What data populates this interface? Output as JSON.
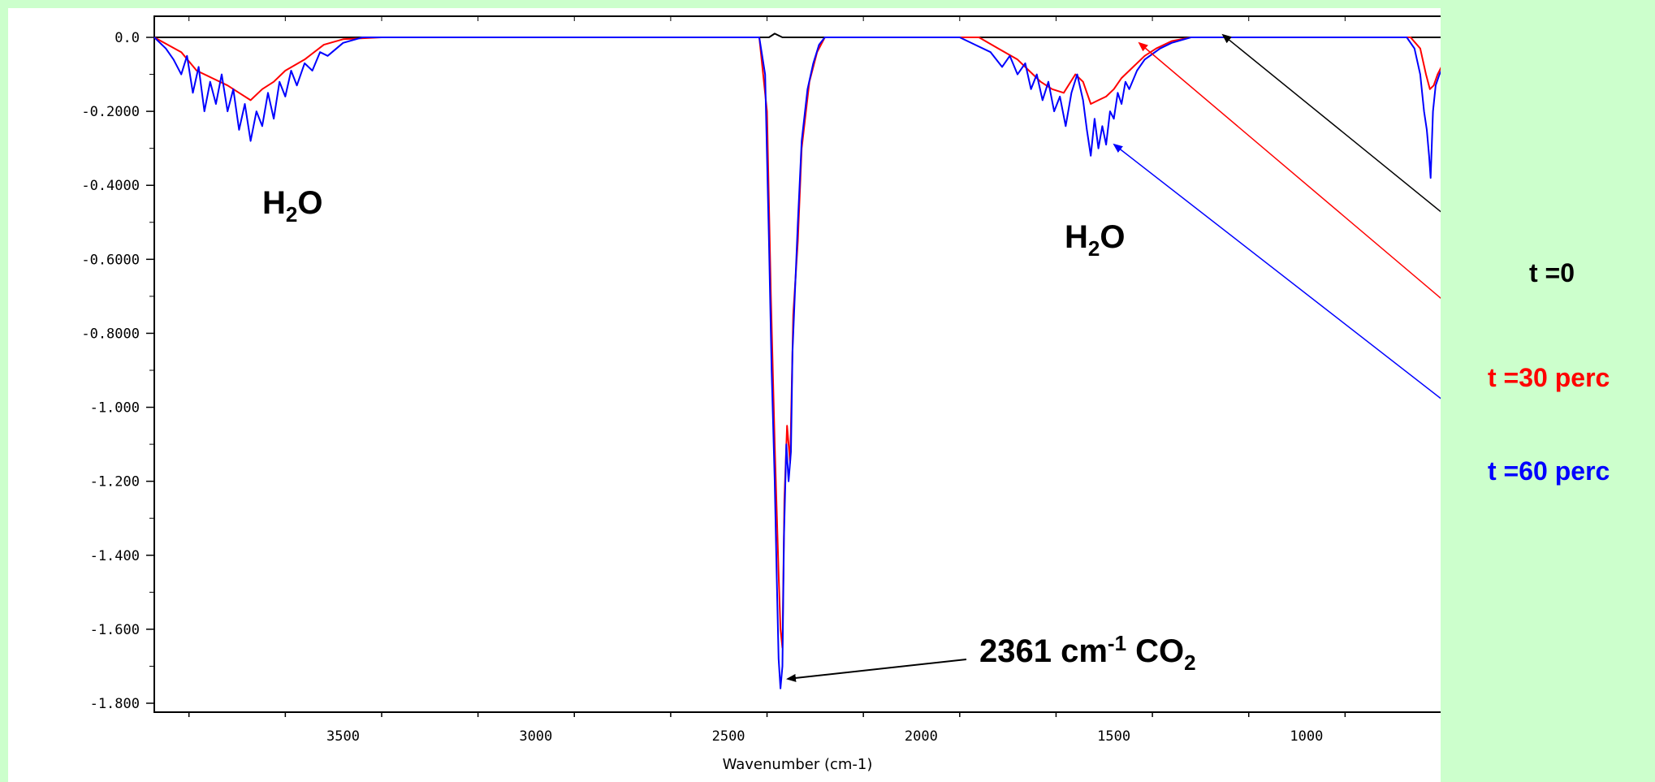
{
  "chart_data": {
    "type": "line",
    "title": "",
    "xlabel": "Wavenumber (cm-1)",
    "ylabel": "",
    "xlim": [
      3990,
      650
    ],
    "ylim": [
      -1.8,
      0.0
    ],
    "x_reversed": true,
    "x_ticks": [
      3500,
      3000,
      2500,
      2000,
      1500,
      1000
    ],
    "x_tick_labels": [
      "3500",
      "3000",
      "2500",
      "2000",
      "1500",
      "1000"
    ],
    "y_ticks": [
      0.0,
      -0.2,
      -0.4,
      -0.6,
      -0.8,
      -1.0,
      -1.2,
      -1.4,
      -1.6,
      -1.8
    ],
    "y_tick_labels": [
      "0.0",
      "-0.2000",
      "-0.4000",
      "-0.6000",
      "-0.8000",
      "-1.000",
      "-1.200",
      "-1.400",
      "-1.600",
      "-1.800"
    ],
    "grid": false,
    "series": [
      {
        "name": "t =0",
        "color": "#000000",
        "points": [
          [
            3990,
            0.0
          ],
          [
            2395,
            0.0
          ],
          [
            2380,
            0.01
          ],
          [
            2360,
            0.0
          ],
          [
            650,
            0.0
          ]
        ]
      },
      {
        "name": "t =30 perc",
        "color": "#ff0000",
        "points": [
          [
            3990,
            0.0
          ],
          [
            3920,
            -0.04
          ],
          [
            3880,
            -0.09
          ],
          [
            3840,
            -0.11
          ],
          [
            3800,
            -0.13
          ],
          [
            3770,
            -0.15
          ],
          [
            3740,
            -0.17
          ],
          [
            3710,
            -0.14
          ],
          [
            3680,
            -0.12
          ],
          [
            3650,
            -0.09
          ],
          [
            3600,
            -0.06
          ],
          [
            3550,
            -0.02
          ],
          [
            3500,
            -0.005
          ],
          [
            3400,
            0.0
          ],
          [
            2420,
            0.0
          ],
          [
            2400,
            -0.2
          ],
          [
            2390,
            -0.7
          ],
          [
            2380,
            -1.1
          ],
          [
            2370,
            -1.45
          ],
          [
            2365,
            -1.6
          ],
          [
            2360,
            -1.65
          ],
          [
            2355,
            -1.25
          ],
          [
            2348,
            -1.05
          ],
          [
            2340,
            -1.15
          ],
          [
            2332,
            -0.75
          ],
          [
            2320,
            -0.55
          ],
          [
            2310,
            -0.3
          ],
          [
            2290,
            -0.12
          ],
          [
            2270,
            -0.04
          ],
          [
            2250,
            0.0
          ],
          [
            1850,
            0.0
          ],
          [
            1800,
            -0.03
          ],
          [
            1750,
            -0.06
          ],
          [
            1720,
            -0.09
          ],
          [
            1690,
            -0.12
          ],
          [
            1660,
            -0.14
          ],
          [
            1630,
            -0.15
          ],
          [
            1600,
            -0.1
          ],
          [
            1580,
            -0.12
          ],
          [
            1560,
            -0.18
          ],
          [
            1540,
            -0.17
          ],
          [
            1520,
            -0.16
          ],
          [
            1500,
            -0.14
          ],
          [
            1480,
            -0.11
          ],
          [
            1450,
            -0.08
          ],
          [
            1420,
            -0.05
          ],
          [
            1390,
            -0.03
          ],
          [
            1350,
            -0.01
          ],
          [
            1300,
            0.0
          ],
          [
            730,
            0.0
          ],
          [
            705,
            -0.03
          ],
          [
            690,
            -0.1
          ],
          [
            680,
            -0.14
          ],
          [
            670,
            -0.13
          ],
          [
            660,
            -0.1
          ],
          [
            650,
            -0.08
          ]
        ]
      },
      {
        "name": "t =60 perc",
        "color": "#0000ff",
        "points": [
          [
            3990,
            0.0
          ],
          [
            3960,
            -0.03
          ],
          [
            3940,
            -0.06
          ],
          [
            3920,
            -0.1
          ],
          [
            3905,
            -0.05
          ],
          [
            3890,
            -0.15
          ],
          [
            3875,
            -0.08
          ],
          [
            3860,
            -0.2
          ],
          [
            3845,
            -0.12
          ],
          [
            3830,
            -0.18
          ],
          [
            3815,
            -0.1
          ],
          [
            3800,
            -0.2
          ],
          [
            3785,
            -0.14
          ],
          [
            3770,
            -0.25
          ],
          [
            3755,
            -0.18
          ],
          [
            3740,
            -0.28
          ],
          [
            3725,
            -0.2
          ],
          [
            3710,
            -0.24
          ],
          [
            3695,
            -0.15
          ],
          [
            3680,
            -0.22
          ],
          [
            3665,
            -0.12
          ],
          [
            3650,
            -0.16
          ],
          [
            3635,
            -0.09
          ],
          [
            3620,
            -0.13
          ],
          [
            3600,
            -0.07
          ],
          [
            3580,
            -0.09
          ],
          [
            3560,
            -0.04
          ],
          [
            3540,
            -0.05
          ],
          [
            3500,
            -0.015
          ],
          [
            3450,
            0.0
          ],
          [
            2420,
            0.0
          ],
          [
            2405,
            -0.1
          ],
          [
            2395,
            -0.55
          ],
          [
            2388,
            -0.9
          ],
          [
            2380,
            -1.2
          ],
          [
            2375,
            -1.45
          ],
          [
            2370,
            -1.68
          ],
          [
            2365,
            -1.76
          ],
          [
            2360,
            -1.7
          ],
          [
            2356,
            -1.35
          ],
          [
            2350,
            -1.1
          ],
          [
            2344,
            -1.2
          ],
          [
            2338,
            -1.12
          ],
          [
            2334,
            -0.85
          ],
          [
            2328,
            -0.7
          ],
          [
            2320,
            -0.5
          ],
          [
            2310,
            -0.28
          ],
          [
            2295,
            -0.14
          ],
          [
            2280,
            -0.07
          ],
          [
            2265,
            -0.02
          ],
          [
            2250,
            0.0
          ],
          [
            1900,
            0.0
          ],
          [
            1860,
            -0.02
          ],
          [
            1820,
            -0.04
          ],
          [
            1790,
            -0.08
          ],
          [
            1770,
            -0.05
          ],
          [
            1750,
            -0.1
          ],
          [
            1730,
            -0.07
          ],
          [
            1715,
            -0.14
          ],
          [
            1700,
            -0.1
          ],
          [
            1685,
            -0.17
          ],
          [
            1670,
            -0.12
          ],
          [
            1655,
            -0.2
          ],
          [
            1640,
            -0.16
          ],
          [
            1625,
            -0.24
          ],
          [
            1610,
            -0.15
          ],
          [
            1595,
            -0.1
          ],
          [
            1580,
            -0.17
          ],
          [
            1570,
            -0.25
          ],
          [
            1560,
            -0.32
          ],
          [
            1550,
            -0.22
          ],
          [
            1540,
            -0.3
          ],
          [
            1530,
            -0.24
          ],
          [
            1520,
            -0.29
          ],
          [
            1510,
            -0.2
          ],
          [
            1500,
            -0.22
          ],
          [
            1490,
            -0.15
          ],
          [
            1480,
            -0.18
          ],
          [
            1470,
            -0.12
          ],
          [
            1460,
            -0.14
          ],
          [
            1440,
            -0.09
          ],
          [
            1420,
            -0.06
          ],
          [
            1400,
            -0.045
          ],
          [
            1380,
            -0.03
          ],
          [
            1350,
            -0.015
          ],
          [
            1300,
            0.0
          ],
          [
            740,
            0.0
          ],
          [
            720,
            -0.03
          ],
          [
            705,
            -0.1
          ],
          [
            695,
            -0.2
          ],
          [
            688,
            -0.25
          ],
          [
            682,
            -0.32
          ],
          [
            678,
            -0.38
          ],
          [
            672,
            -0.2
          ],
          [
            665,
            -0.13
          ],
          [
            655,
            -0.1
          ],
          [
            650,
            -0.09
          ]
        ]
      }
    ],
    "annotations": [
      {
        "id": "h2o-left",
        "text": "H",
        "sub": "2",
        "tail": "O"
      },
      {
        "id": "h2o-right",
        "text": "H",
        "sub": "2",
        "tail": "O"
      },
      {
        "id": "co2",
        "text": "2361 cm",
        "sup": "-1",
        "mid": " CO",
        "sub": "2"
      }
    ],
    "legend_placement": "right, outside plot, with arrows pointing to series",
    "legend": [
      {
        "label": "t =0",
        "color": "#000000"
      },
      {
        "label": "t =30 perc",
        "color": "#ff0000"
      },
      {
        "label": "t =60 perc",
        "color": "#0000ff"
      }
    ]
  }
}
